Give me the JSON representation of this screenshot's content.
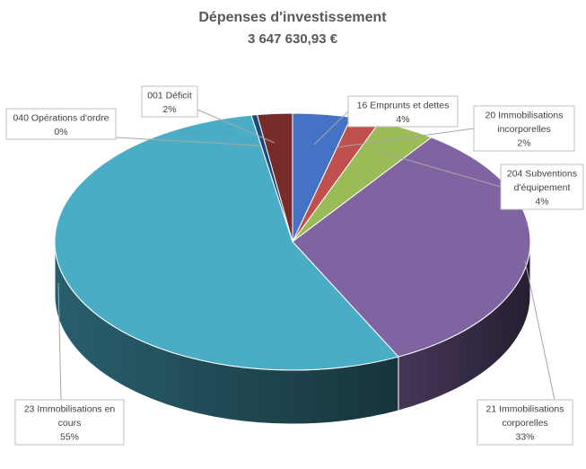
{
  "chart_data": {
    "type": "pie",
    "title": "Dépenses d'investissement",
    "subtitle": "3 647 630,93 €",
    "slices": [
      {
        "label_lines": [
          "16 Emprunts et dettes"
        ],
        "percent_label": "4%",
        "value": 4,
        "color": "#4472c4"
      },
      {
        "label_lines": [
          "20 Immobilisations",
          "incorporelles"
        ],
        "percent_label": "2%",
        "value": 2,
        "color": "#c0504d"
      },
      {
        "label_lines": [
          "204 Subventions",
          "d'équipement"
        ],
        "percent_label": "4%",
        "value": 4,
        "color": "#9bbb59"
      },
      {
        "label_lines": [
          "21 Immobilisations",
          "corporelles"
        ],
        "percent_label": "33%",
        "value": 33,
        "color": "#8064a2"
      },
      {
        "label_lines": [
          "23 Immobilisations en",
          "cours"
        ],
        "percent_label": "55%",
        "value": 55,
        "color": "#4bacc6"
      },
      {
        "label_lines": [
          "040 Opérations d'ordre"
        ],
        "percent_label": "0%",
        "value": 0.4,
        "color": "#1f497d"
      },
      {
        "label_lines": [
          "001 Déficit"
        ],
        "percent_label": "2%",
        "value": 2.4,
        "color": "#772c2a"
      }
    ],
    "legend": "none",
    "style": "3d-pie"
  }
}
